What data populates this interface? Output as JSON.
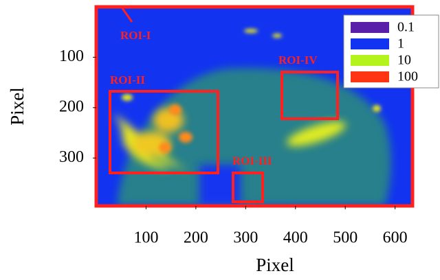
{
  "chart_data": {
    "type": "heatmap",
    "x_label": "Pixel",
    "y_label": "Pixel",
    "xlim": [
      0,
      635
    ],
    "ylim": [
      0,
      395
    ],
    "y_inverted": true,
    "xticks": [
      100,
      200,
      300,
      400,
      500,
      600
    ],
    "yticks": [
      100,
      200,
      300
    ],
    "legend_position": "upper right",
    "legend": [
      {
        "label": "0.1",
        "color": "#5a1fa8"
      },
      {
        "label": "1",
        "color": "#1234f0"
      },
      {
        "label": "10",
        "color": "#b4f41c"
      },
      {
        "label": "100",
        "color": "#ff3412"
      }
    ],
    "annotations": [
      "ROI-I",
      "ROI-II",
      "ROI-III",
      "ROI-IV"
    ]
  }
}
